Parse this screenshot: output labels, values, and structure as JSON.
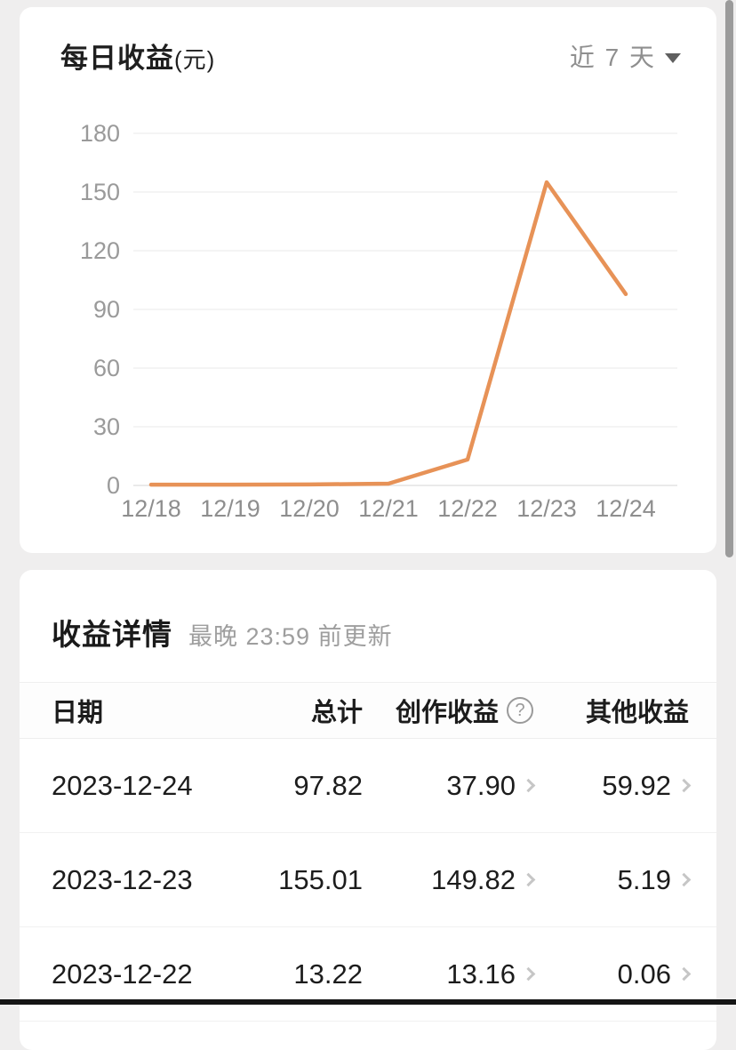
{
  "chart_card": {
    "title": "每日收益",
    "title_unit": "(元)",
    "range_label": "近 7 天"
  },
  "chart_data": {
    "type": "line",
    "title": "每日收益(元)",
    "x": [
      "12/18",
      "12/19",
      "12/20",
      "12/21",
      "12/22",
      "12/23",
      "12/24"
    ],
    "series": [
      {
        "name": "每日收益",
        "values": [
          0.4,
          0.4,
          0.5,
          0.9,
          13.22,
          155.01,
          97.82
        ]
      }
    ],
    "yticks": [
      0,
      30,
      60,
      90,
      120,
      150,
      180
    ],
    "ylim": [
      0,
      180
    ],
    "grid": true,
    "legend": false,
    "line_color": "#E79257"
  },
  "detail_card": {
    "title": "收益详情",
    "update_note": "最晚 23:59 前更新",
    "table": {
      "headers": [
        "日期",
        "总计",
        "创作收益",
        "其他收益"
      ],
      "help_icon": "?",
      "rows": [
        {
          "date": "2023-12-24",
          "total": "97.82",
          "creation": "37.90",
          "other": "59.92"
        },
        {
          "date": "2023-12-23",
          "total": "155.01",
          "creation": "149.82",
          "other": "5.19"
        },
        {
          "date": "2023-12-22",
          "total": "13.22",
          "creation": "13.16",
          "other": "0.06"
        }
      ]
    }
  }
}
